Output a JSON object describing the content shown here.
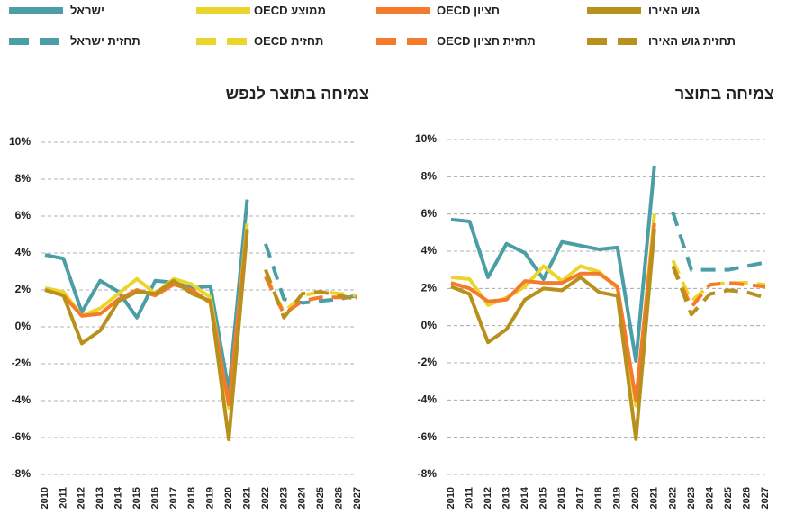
{
  "chart_data": [
    {
      "type": "line",
      "title": "צמיחה בתוצר לנפש",
      "categories": [
        "2010",
        "2011",
        "2012",
        "2013",
        "2014",
        "2015",
        "2016",
        "2017",
        "2018",
        "2019",
        "2020",
        "2021",
        "2022",
        "2023",
        "2024",
        "2025",
        "2026",
        "2027"
      ],
      "ylim": [
        -8,
        10
      ],
      "yticks": [
        {
          "value": -8,
          "label": "-8%"
        },
        {
          "value": -6,
          "label": "-6%"
        },
        {
          "value": -4,
          "label": "-4%"
        },
        {
          "value": -2,
          "label": "-2%"
        },
        {
          "value": 0,
          "label": "0%"
        },
        {
          "value": 2,
          "label": "2%"
        },
        {
          "value": 4,
          "label": "4%"
        },
        {
          "value": 6,
          "label": "6%"
        },
        {
          "value": 8,
          "label": "8%"
        },
        {
          "value": 10,
          "label": "10%"
        }
      ],
      "grid": true,
      "series": [
        {
          "name": "ישראל",
          "color": "#4b9ea6",
          "dashed": false,
          "values": [
            3.9,
            3.7,
            0.8,
            2.5,
            1.9,
            0.5,
            2.5,
            2.4,
            2.1,
            2.2,
            -3.5,
            6.9,
            null,
            null,
            null,
            null,
            null,
            null
          ]
        },
        {
          "name": "ממוצע OECD",
          "color": "#ecd52b",
          "dashed": false,
          "values": [
            2.1,
            1.9,
            0.6,
            1.0,
            1.8,
            2.6,
            1.8,
            2.6,
            2.3,
            1.6,
            -4.4,
            5.6,
            null,
            null,
            null,
            null,
            null,
            null
          ]
        },
        {
          "name": "חציון OECD",
          "color": "#f47b2c",
          "dashed": false,
          "values": [
            2.0,
            1.7,
            0.6,
            0.7,
            1.5,
            2.0,
            1.7,
            2.3,
            2.0,
            1.3,
            -4.2,
            5.3,
            null,
            null,
            null,
            null,
            null,
            null
          ]
        },
        {
          "name": "גוש האירו",
          "color": "#b8901c",
          "dashed": false,
          "values": [
            2.0,
            1.7,
            -0.9,
            -0.2,
            1.4,
            1.9,
            1.8,
            2.5,
            1.8,
            1.4,
            -6.1,
            5.2,
            null,
            null,
            null,
            null,
            null,
            null
          ]
        },
        {
          "name": "תחזית ישראל",
          "color": "#4b9ea6",
          "dashed": true,
          "values": [
            null,
            null,
            null,
            null,
            null,
            null,
            null,
            null,
            null,
            null,
            null,
            null,
            4.5,
            1.5,
            1.3,
            1.4,
            1.5,
            1.7
          ]
        },
        {
          "name": "תחזית OECD",
          "color": "#ecd52b",
          "dashed": true,
          "values": [
            null,
            null,
            null,
            null,
            null,
            null,
            null,
            null,
            null,
            null,
            null,
            null,
            2.8,
            0.8,
            1.7,
            1.9,
            1.8,
            1.7
          ]
        },
        {
          "name": "תחזית חציון OECD",
          "color": "#f47b2c",
          "dashed": true,
          "values": [
            null,
            null,
            null,
            null,
            null,
            null,
            null,
            null,
            null,
            null,
            null,
            null,
            2.7,
            0.7,
            1.4,
            1.6,
            1.6,
            1.6
          ]
        },
        {
          "name": "תחזית גוש האירו",
          "color": "#b8901c",
          "dashed": true,
          "values": [
            null,
            null,
            null,
            null,
            null,
            null,
            null,
            null,
            null,
            null,
            null,
            null,
            3.1,
            0.5,
            1.8,
            1.9,
            1.7,
            1.5
          ]
        }
      ]
    },
    {
      "type": "line",
      "title": "צמיחה בתוצר",
      "categories": [
        "2010",
        "2011",
        "2012",
        "2013",
        "2014",
        "2015",
        "2016",
        "2017",
        "2018",
        "2019",
        "2020",
        "2021",
        "2022",
        "2023",
        "2024",
        "2025",
        "2026",
        "2027"
      ],
      "ylim": [
        -8,
        10
      ],
      "yticks": [
        {
          "value": -8,
          "label": "-8%"
        },
        {
          "value": -6,
          "label": "-6%"
        },
        {
          "value": -4,
          "label": "-4%"
        },
        {
          "value": -2,
          "label": "-2%"
        },
        {
          "value": 0,
          "label": "0%"
        },
        {
          "value": 2,
          "label": "2%"
        },
        {
          "value": 4,
          "label": "4%"
        },
        {
          "value": 6,
          "label": "6%"
        },
        {
          "value": 8,
          "label": "8%"
        },
        {
          "value": 10,
          "label": "10%"
        }
      ],
      "grid": true,
      "series": [
        {
          "values": [
            5.7,
            5.6,
            2.6,
            4.4,
            3.9,
            2.5,
            4.5,
            4.3,
            4.1,
            4.2,
            -1.9,
            8.6,
            null,
            null,
            null,
            null,
            null,
            null
          ]
        },
        {
          "values": [
            2.6,
            2.5,
            1.1,
            1.5,
            2.1,
            3.2,
            2.4,
            3.2,
            2.9,
            2.0,
            -4.3,
            6.0,
            null,
            null,
            null,
            null,
            null,
            null
          ]
        },
        {
          "values": [
            2.3,
            2.0,
            1.3,
            1.4,
            2.4,
            2.3,
            2.3,
            2.8,
            2.8,
            2.1,
            -4.0,
            5.5,
            null,
            null,
            null,
            null,
            null,
            null
          ]
        },
        {
          "values": [
            2.1,
            1.7,
            -0.9,
            -0.2,
            1.4,
            2.0,
            1.9,
            2.6,
            1.8,
            1.6,
            -6.1,
            5.2,
            null,
            null,
            null,
            null,
            null,
            null
          ]
        },
        {
          "values": [
            null,
            null,
            null,
            null,
            null,
            null,
            null,
            null,
            null,
            null,
            null,
            null,
            6.1,
            3.0,
            3.0,
            3.0,
            3.2,
            3.4
          ]
        },
        {
          "values": [
            null,
            null,
            null,
            null,
            null,
            null,
            null,
            null,
            null,
            null,
            null,
            null,
            3.5,
            1.3,
            2.2,
            2.3,
            2.3,
            2.2
          ]
        },
        {
          "values": [
            null,
            null,
            null,
            null,
            null,
            null,
            null,
            null,
            null,
            null,
            null,
            null,
            3.2,
            1.0,
            2.2,
            2.3,
            2.2,
            2.1
          ]
        },
        {
          "values": [
            null,
            null,
            null,
            null,
            null,
            null,
            null,
            null,
            null,
            null,
            null,
            null,
            3.2,
            0.6,
            1.7,
            1.9,
            1.8,
            1.5
          ]
        }
      ]
    }
  ]
}
